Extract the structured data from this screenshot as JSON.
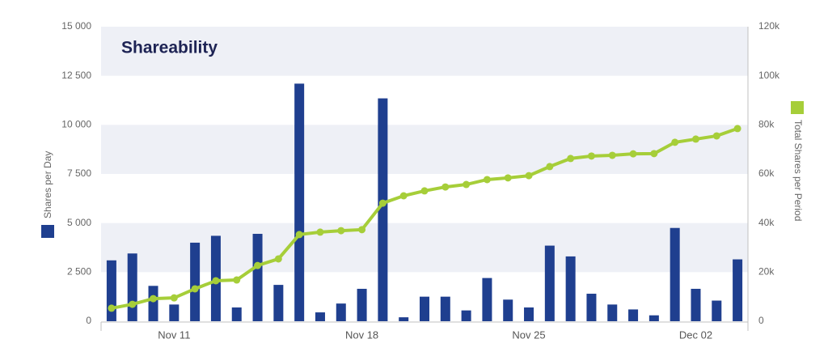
{
  "chart_data": {
    "type": "bar",
    "title": "Shareability",
    "categories": [
      null,
      null,
      null,
      "Nov 11",
      null,
      null,
      null,
      null,
      null,
      null,
      null,
      null,
      "Nov 18",
      null,
      null,
      null,
      null,
      null,
      null,
      null,
      "Nov 25",
      null,
      null,
      null,
      null,
      null,
      null,
      null,
      "Dec 02",
      null,
      null
    ],
    "series": [
      {
        "name": "Shares per Day",
        "type": "bar",
        "color": "#1f3f8f",
        "axis": "y",
        "values": [
          3100,
          3450,
          1800,
          850,
          4000,
          4350,
          700,
          4450,
          1850,
          12100,
          450,
          900,
          1650,
          11350,
          200,
          1250,
          1250,
          550,
          2200,
          1100,
          700,
          3850,
          3300,
          1400,
          850,
          600,
          300,
          4750,
          1650,
          1050,
          3150
        ]
      },
      {
        "name": "Total Shares per Period",
        "type": "line",
        "color": "#a6ce39",
        "axis": "y2",
        "values": [
          5300,
          6900,
          9200,
          9500,
          13200,
          16500,
          16800,
          22700,
          25400,
          35300,
          36300,
          36900,
          37300,
          48100,
          51100,
          53100,
          54700,
          55700,
          57700,
          58400,
          59300,
          63000,
          66300,
          67300,
          67600,
          68200,
          68300,
          72900,
          74200,
          75500,
          78500
        ]
      }
    ],
    "ylim": [
      0,
      15000
    ],
    "yticks": [
      0,
      {
        "value": 2500,
        "label": "2 500"
      },
      {
        "value": 5000,
        "label": "5 000"
      },
      {
        "value": 7500,
        "label": "7 500"
      },
      {
        "value": 10000,
        "label": "10 000"
      },
      {
        "value": 12500,
        "label": "12 500"
      },
      {
        "value": 15000,
        "label": "15 000"
      }
    ],
    "y2lim": [
      0,
      120000
    ],
    "y2ticks": [
      0,
      {
        "value": 20000,
        "label": "20k"
      },
      {
        "value": 40000,
        "label": "40k"
      },
      {
        "value": 60000,
        "label": "60k"
      },
      {
        "value": 80000,
        "label": "80k"
      },
      {
        "value": 100000,
        "label": "100k"
      },
      {
        "value": 120000,
        "label": "120k"
      }
    ],
    "grid": true
  }
}
